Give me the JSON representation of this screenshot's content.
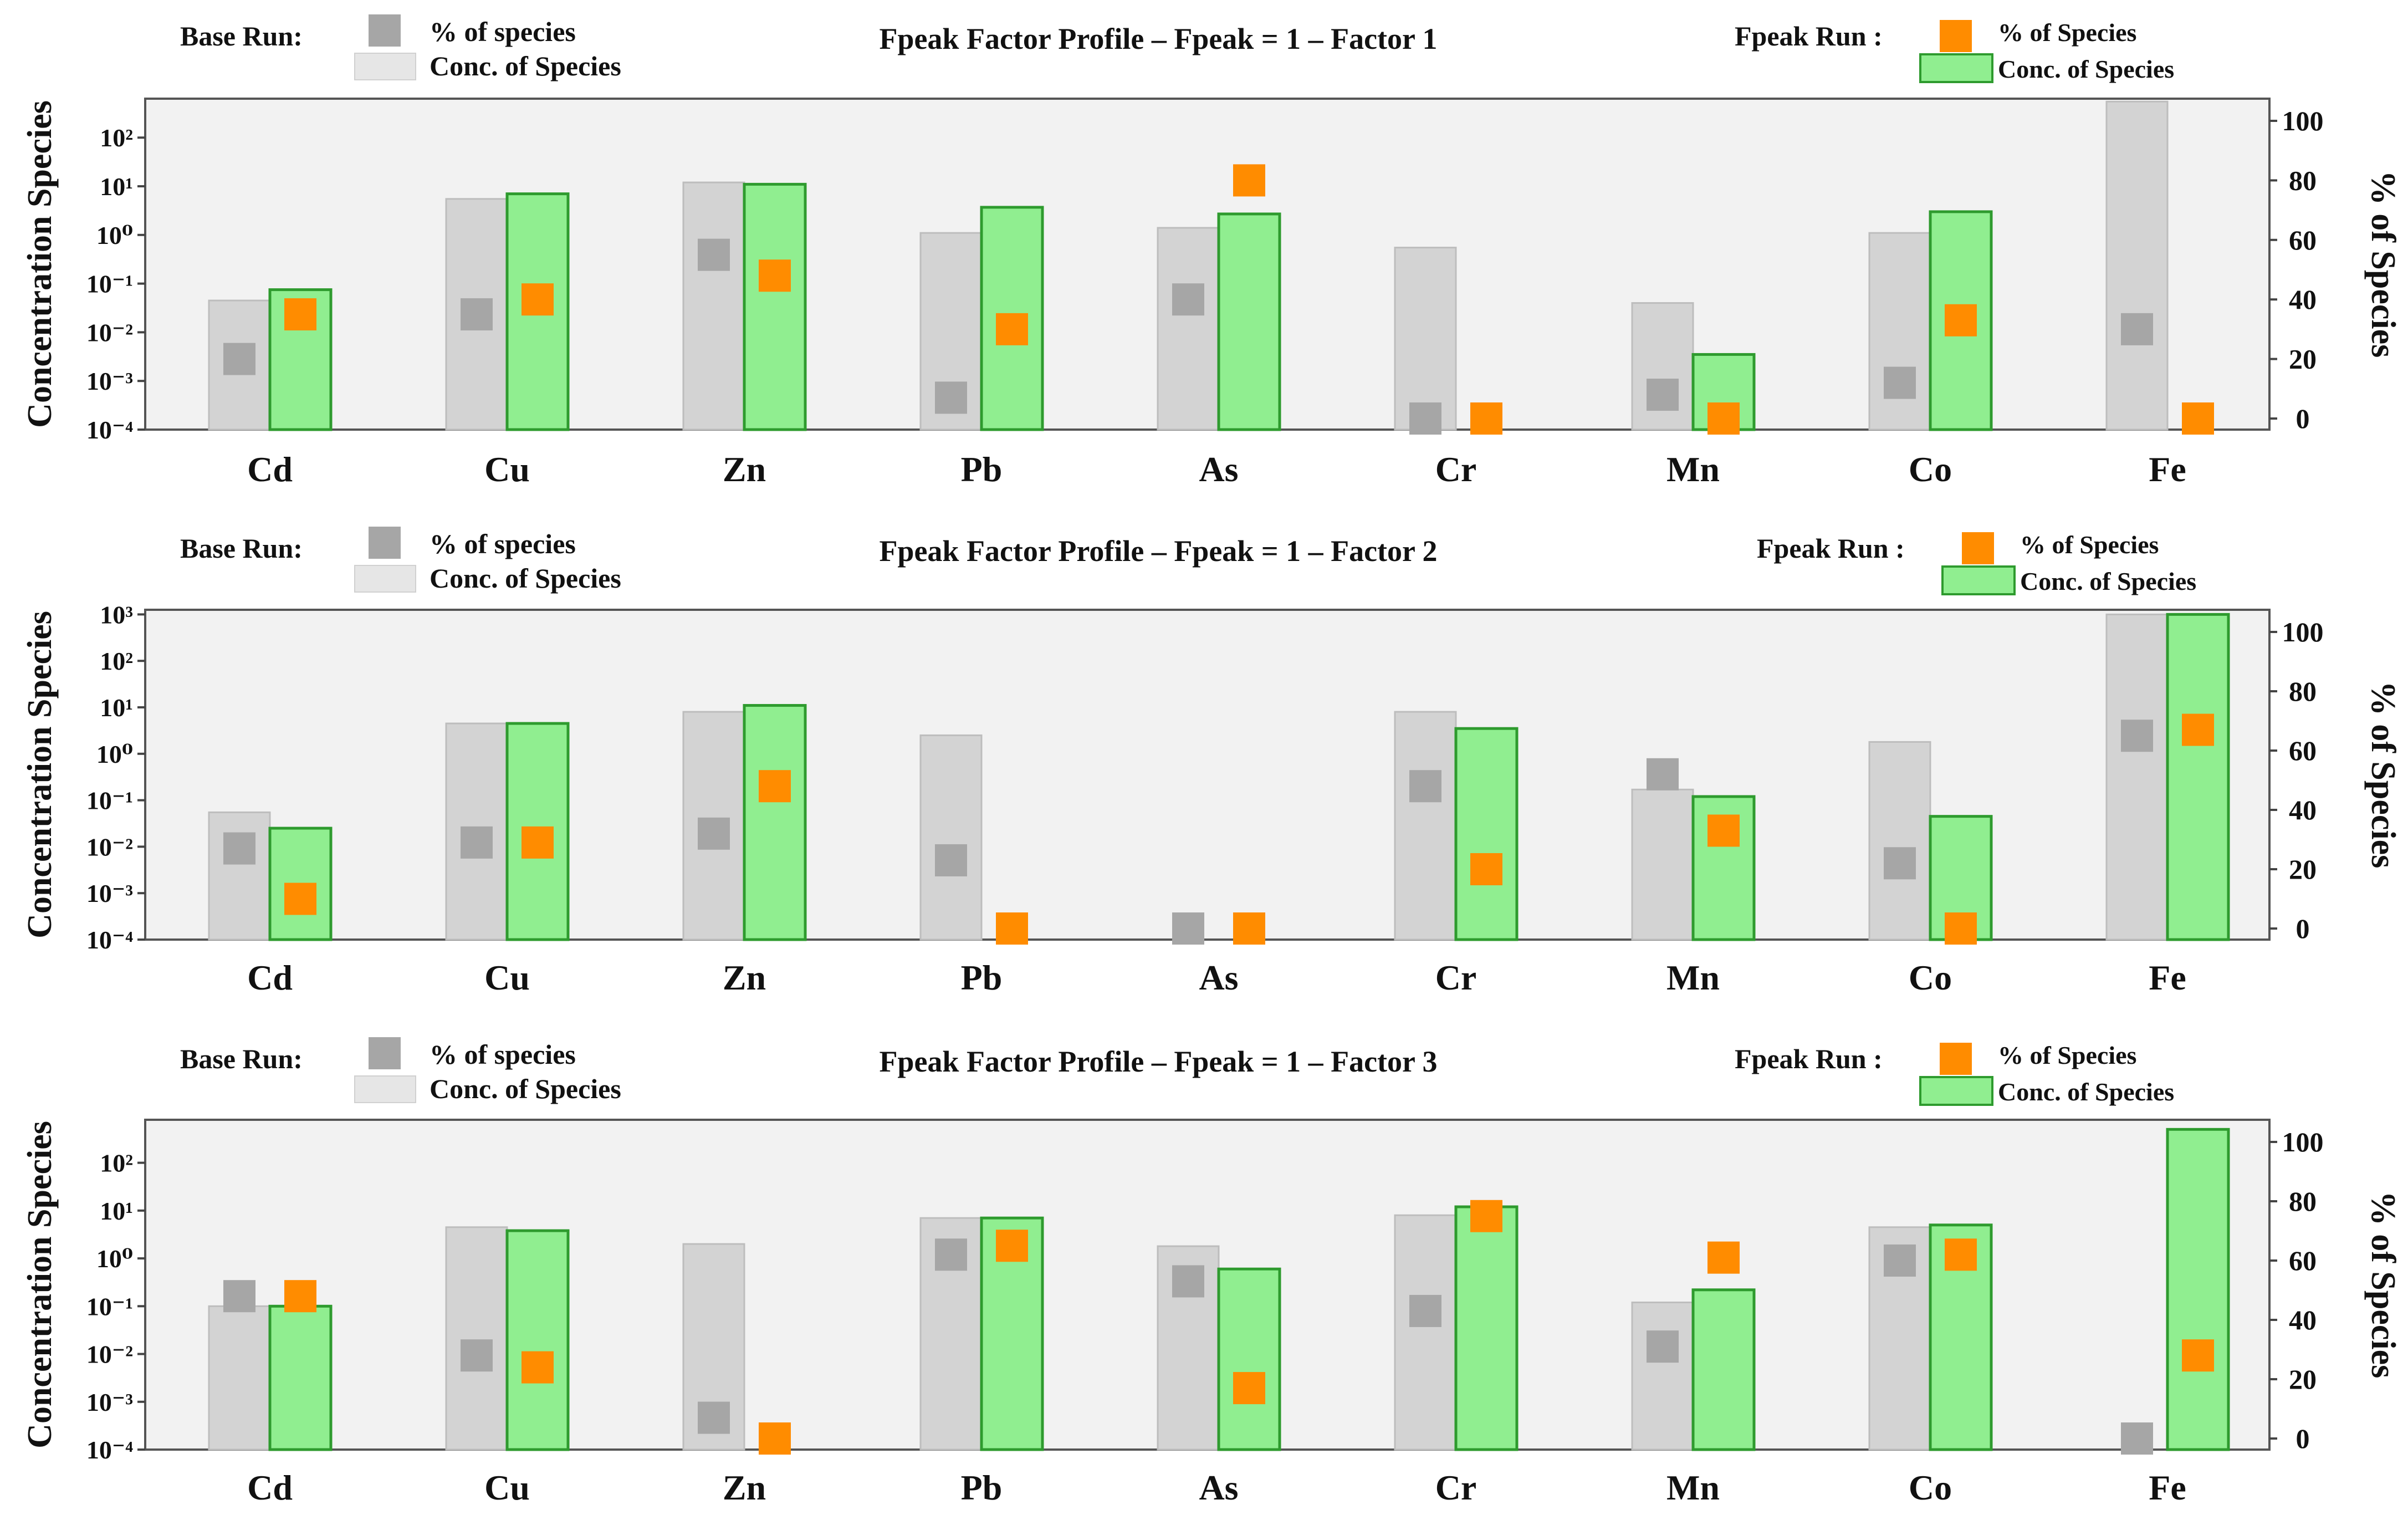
{
  "colors": {
    "base_bar": "#d3d3d3",
    "base_bar_stroke": "#bdbdbd",
    "base_marker": "#a6a6a6",
    "fpeak_bar": "#90ee90",
    "fpeak_bar_stroke": "#2e9b2e",
    "fpeak_marker": "#ff8c00",
    "plot_bg": "#f2f2f2"
  },
  "legend": {
    "base_label": "Base Run:",
    "base_pct": "% of species",
    "base_conc": "Conc. of Species",
    "fpeak_label": "Fpeak Run :",
    "fpeak_pct": "% of Species",
    "fpeak_conc": "Conc. of Species"
  },
  "chart_data": [
    {
      "type": "bar",
      "title": "Fpeak Factor Profile – Fpeak = 1 – Factor 1",
      "ylabel": "Concentration Species",
      "y2label": "% of Species",
      "categories": [
        "Cd",
        "Cu",
        "Zn",
        "Pb",
        "As",
        "Cr",
        "Mn",
        "Co",
        "Fe"
      ],
      "ylog_range": [
        -4,
        2.8
      ],
      "y_ticks": [
        "10⁻⁴",
        "10⁻³",
        "10⁻²",
        "10⁻¹",
        "10⁰",
        "10¹",
        "10²"
      ],
      "y2lim": [
        0,
        100
      ],
      "y2_ticks": [
        "0",
        "20",
        "40",
        "60",
        "80",
        "100"
      ],
      "series": [
        {
          "name": "Base Run Conc. of Species",
          "kind": "bar",
          "values": [
            0.045,
            5.5,
            12,
            1.1,
            1.4,
            0.55,
            0.04,
            1.1,
            550
          ]
        },
        {
          "name": "Fpeak Run Conc. of Species",
          "kind": "bar",
          "values": [
            0.075,
            7,
            11,
            3.7,
            2.7,
            null,
            0.0035,
            3,
            null
          ]
        },
        {
          "name": "Base Run % of species",
          "kind": "marker",
          "values": [
            20,
            35,
            55,
            7,
            40,
            0,
            8,
            12,
            30
          ]
        },
        {
          "name": "Fpeak Run % of Species",
          "kind": "marker",
          "values": [
            35,
            40,
            48,
            30,
            80,
            0,
            0,
            33,
            0
          ]
        }
      ]
    },
    {
      "type": "bar",
      "title": "Fpeak Factor Profile – Fpeak = 1 – Factor 2",
      "ylabel": "Concentration Species",
      "y2label": "% of Species",
      "categories": [
        "Cd",
        "Cu",
        "Zn",
        "Pb",
        "As",
        "Cr",
        "Mn",
        "Co",
        "Fe"
      ],
      "ylog_range": [
        -4,
        3.1
      ],
      "y_ticks": [
        "10⁻⁴",
        "10⁻³",
        "10⁻²",
        "10⁻¹",
        "10⁰",
        "10¹",
        "10²",
        "10³"
      ],
      "y2lim": [
        0,
        100
      ],
      "y2_ticks": [
        "0",
        "20",
        "40",
        "60",
        "80",
        "100"
      ],
      "series": [
        {
          "name": "Base Run Conc. of Species",
          "kind": "bar",
          "values": [
            0.055,
            4.5,
            8,
            2.5,
            null,
            8,
            0.17,
            1.8,
            1000
          ]
        },
        {
          "name": "Fpeak Run Conc. of Species",
          "kind": "bar",
          "values": [
            0.025,
            4.5,
            11,
            null,
            null,
            3.5,
            0.12,
            0.045,
            1000
          ]
        },
        {
          "name": "Base Run % of species",
          "kind": "marker",
          "values": [
            27,
            29,
            32,
            23,
            0,
            48,
            52,
            22,
            65
          ]
        },
        {
          "name": "Fpeak Run % of Species",
          "kind": "marker",
          "values": [
            10,
            29,
            48,
            0,
            0,
            20,
            33,
            0,
            67
          ]
        }
      ]
    },
    {
      "type": "bar",
      "title": "Fpeak Factor Profile – Fpeak = 1 – Factor 3",
      "ylabel": "Concentration Species",
      "y2label": "% of Species",
      "categories": [
        "Cd",
        "Cu",
        "Zn",
        "Pb",
        "As",
        "Cr",
        "Mn",
        "Co",
        "Fe"
      ],
      "ylog_range": [
        -4,
        2.9
      ],
      "y_ticks": [
        "10⁻⁴",
        "10⁻³",
        "10⁻²",
        "10⁻¹",
        "10⁰",
        "10¹",
        "10²"
      ],
      "y2lim": [
        0,
        100
      ],
      "y2_ticks": [
        "0",
        "20",
        "40",
        "60",
        "80",
        "100"
      ],
      "series": [
        {
          "name": "Base Run Conc. of Species",
          "kind": "bar",
          "values": [
            0.1,
            4.5,
            2,
            7,
            1.8,
            8,
            0.12,
            4.5,
            null
          ]
        },
        {
          "name": "Fpeak Run Conc. of Species",
          "kind": "bar",
          "values": [
            0.1,
            3.8,
            null,
            7,
            0.6,
            12,
            0.22,
            5,
            500
          ]
        },
        {
          "name": "Base Run % of species",
          "kind": "marker",
          "values": [
            48,
            28,
            7,
            62,
            53,
            43,
            31,
            60,
            0
          ]
        },
        {
          "name": "Fpeak Run % of Species",
          "kind": "marker",
          "values": [
            48,
            24,
            0,
            65,
            17,
            75,
            61,
            62,
            28
          ]
        }
      ]
    }
  ]
}
